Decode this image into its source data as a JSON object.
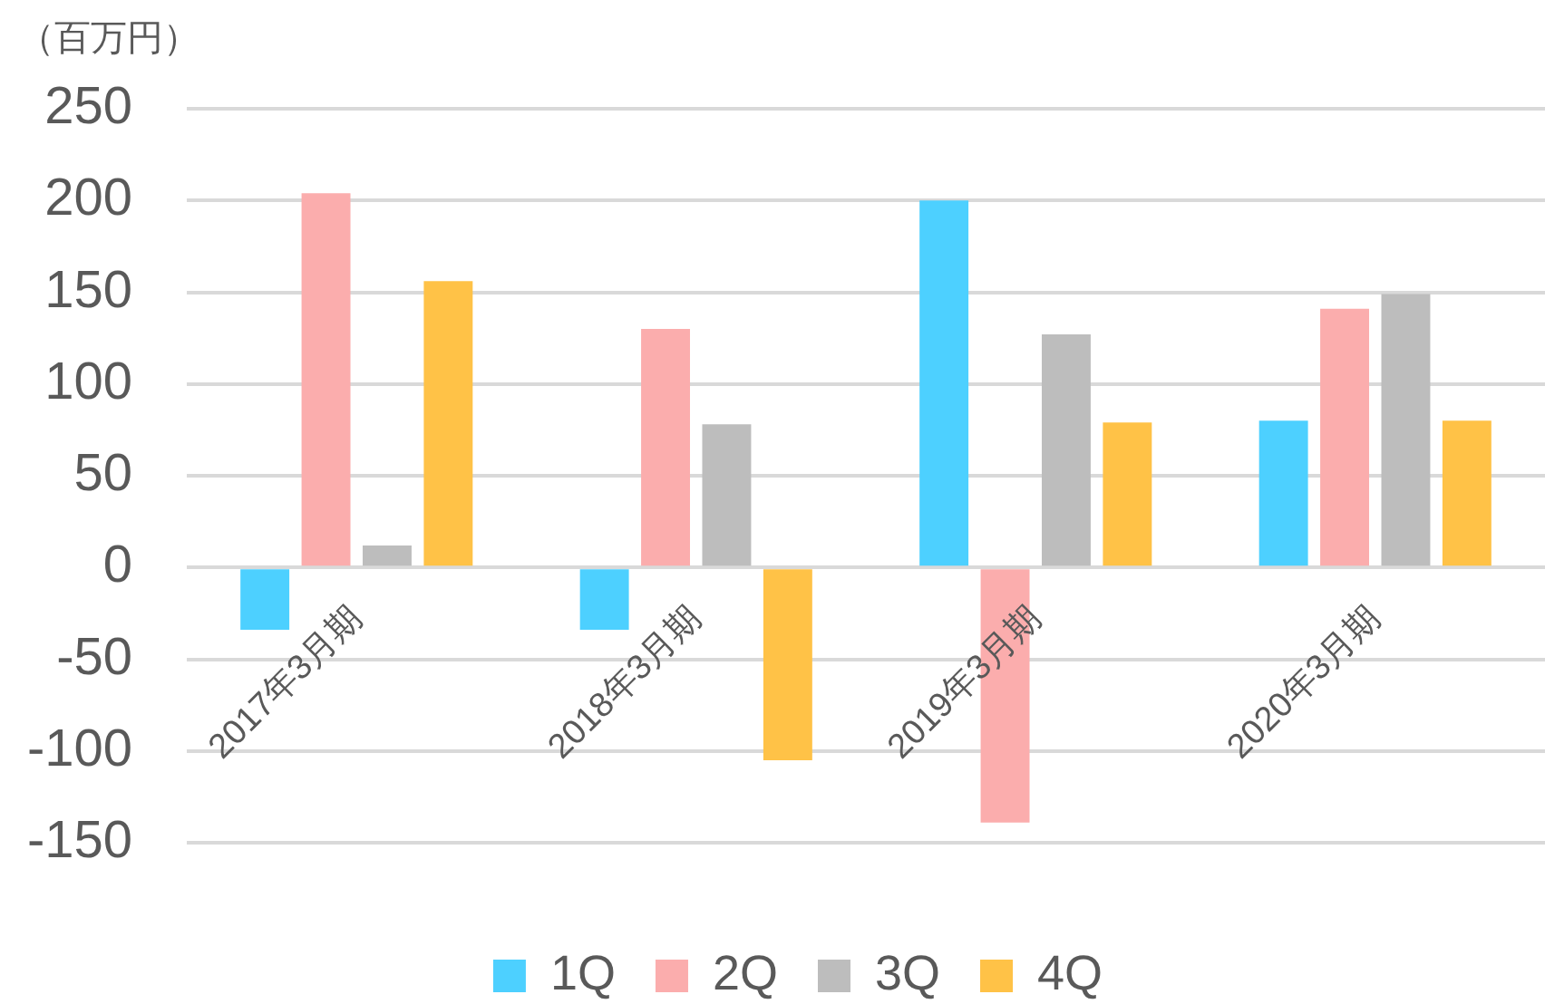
{
  "chart_data": {
    "type": "bar",
    "ylabel": "（百万円）",
    "categories": [
      "2017年3月期",
      "2018年3月期",
      "2019年3月期",
      "2020年3月期"
    ],
    "series": [
      {
        "name": "1Q",
        "color": "#4dd0ff",
        "values": [
          -34,
          -34,
          200,
          80
        ]
      },
      {
        "name": "2Q",
        "color": "#fbadad",
        "values": [
          204,
          130,
          -139,
          141
        ]
      },
      {
        "name": "3Q",
        "color": "#bdbdbd",
        "values": [
          12,
          78,
          127,
          149
        ]
      },
      {
        "name": "4Q",
        "color": "#ffc247",
        "values": [
          156,
          -105,
          79,
          80
        ]
      }
    ],
    "ylim": [
      -150,
      250
    ],
    "yticks": [
      -150,
      -100,
      -50,
      0,
      50,
      100,
      150,
      200,
      250
    ],
    "grid": "y",
    "legend": "bottom"
  }
}
